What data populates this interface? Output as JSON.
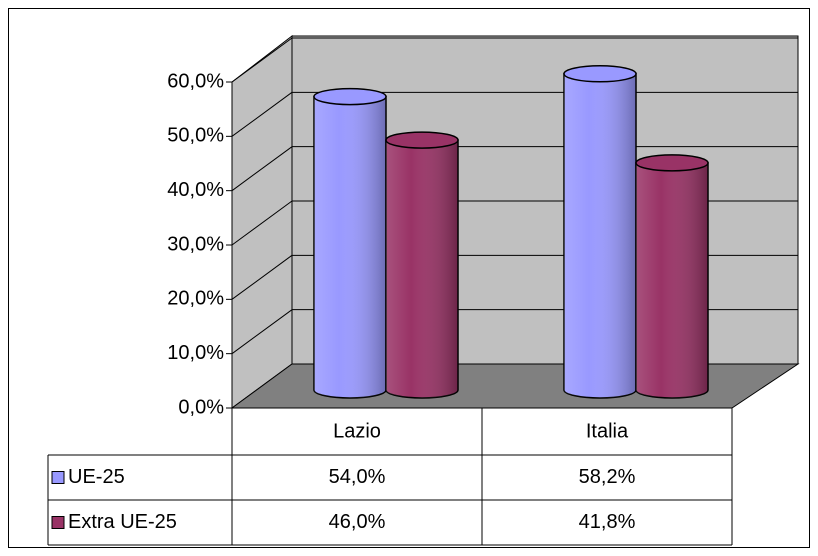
{
  "chart_data": {
    "type": "bar3d",
    "categories": [
      "Lazio",
      "Italia"
    ],
    "series": [
      {
        "name": "UE-25",
        "color": "#9999ff",
        "values": [
          54.0,
          58.2
        ],
        "value_labels": [
          "54,0%",
          "58,2%"
        ]
      },
      {
        "name": "Extra UE-25",
        "color": "#993366",
        "values": [
          46.0,
          41.8
        ],
        "value_labels": [
          "46,0%",
          "41,8%"
        ]
      }
    ],
    "ylim": [
      0,
      60
    ],
    "yticks": [
      {
        "value": 0,
        "label": "0,0%"
      },
      {
        "value": 10,
        "label": "10,0%"
      },
      {
        "value": 20,
        "label": "20,0%"
      },
      {
        "value": 30,
        "label": "30,0%"
      },
      {
        "value": 40,
        "label": "40,0%"
      },
      {
        "value": 50,
        "label": "50,0%"
      },
      {
        "value": 60,
        "label": "60,0%"
      }
    ],
    "grid": true
  }
}
